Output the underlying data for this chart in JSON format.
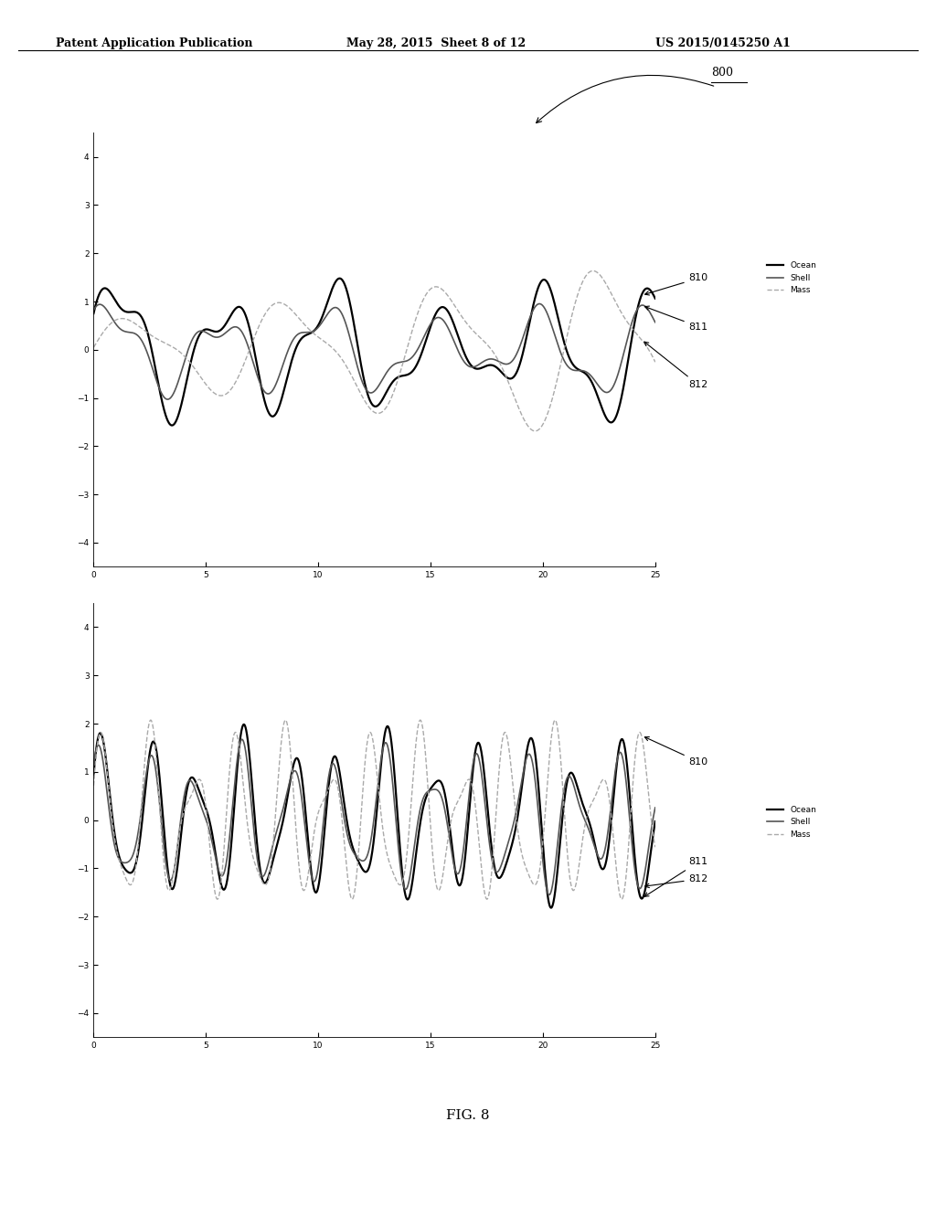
{
  "background_color": "#ffffff",
  "header_left": "Patent Application Publication",
  "header_mid": "May 28, 2015  Sheet 8 of 12",
  "header_right": "US 2015/0145250 A1",
  "fig_label": "FIG. 8",
  "ocean_color": "#000000",
  "shell_color": "#555555",
  "mass_color": "#aaaaaa",
  "ocean_lw": 1.6,
  "shell_lw": 1.2,
  "mass_lw": 1.0,
  "mass_ls": "--",
  "ylim1": [
    -4.5,
    4.5
  ],
  "ylim2": [
    -4.5,
    4.5
  ],
  "xlim": [
    0,
    25
  ],
  "yticks": [
    -4,
    -3,
    -2,
    -1,
    0,
    1,
    2,
    3,
    4
  ],
  "xticks": [
    0,
    5,
    10,
    15,
    20,
    25
  ],
  "legend_items": [
    "Ocean",
    "Shell",
    "Mass"
  ],
  "label_800": "800",
  "label_810": "810",
  "label_811": "811",
  "label_812": "812"
}
